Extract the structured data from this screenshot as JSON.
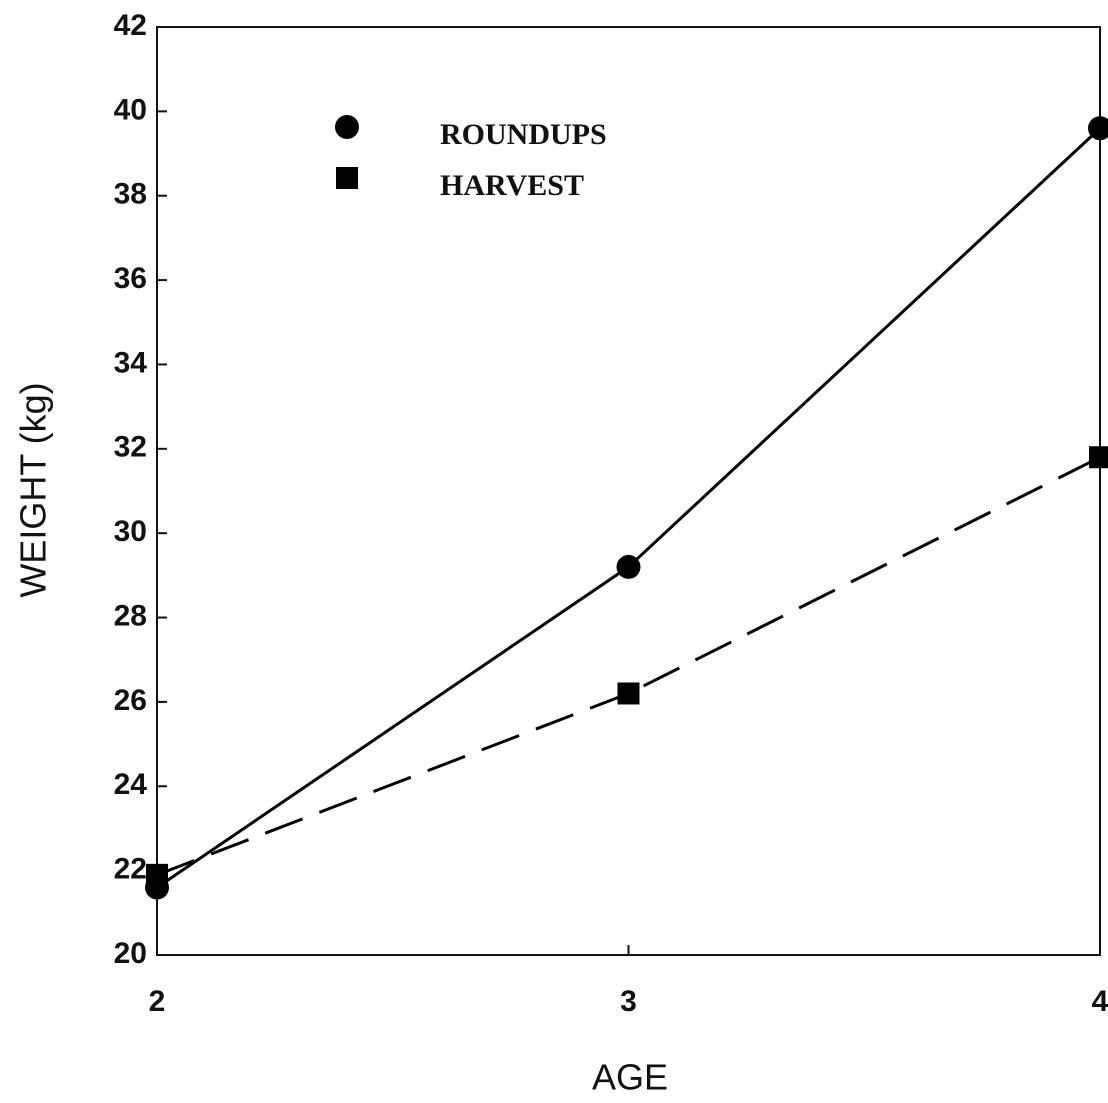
{
  "chart_data": {
    "type": "line",
    "x_label": "AGE",
    "y_label": "WEIGHT (kg)",
    "x": [
      2,
      3,
      4
    ],
    "xlim": [
      2,
      4
    ],
    "xticks": [
      2,
      3,
      4
    ],
    "ylim": [
      20,
      42
    ],
    "yticks": [
      20,
      22,
      24,
      26,
      28,
      30,
      32,
      34,
      36,
      38,
      40,
      42
    ],
    "grid": false,
    "legend": "upper left",
    "series": [
      {
        "name": "ROUNDUPS",
        "color": "#000000",
        "line_style": "solid",
        "marker": "circle",
        "values": [
          21.6,
          29.2,
          39.6
        ]
      },
      {
        "name": "HARVEST",
        "color": "#000000",
        "line_style": "dashed",
        "marker": "square",
        "values": [
          21.9,
          26.2,
          31.8
        ]
      }
    ]
  }
}
